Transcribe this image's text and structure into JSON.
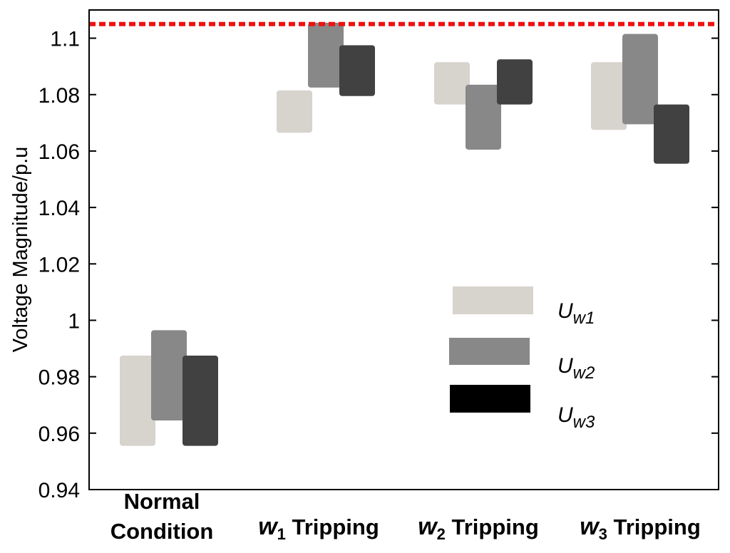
{
  "chart_data": {
    "type": "floating-bar",
    "title": "",
    "ylabel": "Voltage Magnitude/p.u",
    "ylim": [
      0.94,
      1.11
    ],
    "yticks": [
      "0.94",
      "0.96",
      "0.98",
      "1",
      "1.02",
      "1.04",
      "1.06",
      "1.08",
      "1.1"
    ],
    "categories": [
      {
        "lines": [
          {
            "text": "Normal"
          },
          {
            "text": "Condition"
          }
        ]
      },
      {
        "lines": [
          {
            "sym": "w",
            "sub": "1",
            "text": " Tripping"
          }
        ]
      },
      {
        "lines": [
          {
            "sym": "w",
            "sub": "2",
            "text": " Tripping"
          }
        ]
      },
      {
        "lines": [
          {
            "sym": "w",
            "sub": "3",
            "text": " Tripping"
          }
        ]
      }
    ],
    "series": [
      {
        "label_main": "U",
        "label_sub": "w1",
        "color": "#d7d3cd",
        "ranges": [
          [
            0.9555,
            0.9875
          ],
          [
            1.0665,
            1.0815
          ],
          [
            1.0765,
            1.0915
          ],
          [
            1.0675,
            1.0915
          ]
        ]
      },
      {
        "label_main": "U",
        "label_sub": "w2",
        "color": "#888888",
        "ranges": [
          [
            0.9645,
            0.9965
          ],
          [
            1.0825,
            1.1055
          ],
          [
            1.0605,
            1.0835
          ],
          [
            1.0695,
            1.1015
          ]
        ]
      },
      {
        "label_main": "U",
        "label_sub": "w3",
        "color": "#414141",
        "ranges": [
          [
            0.9555,
            0.9875
          ],
          [
            1.0795,
            1.0975
          ],
          [
            1.0765,
            1.0925
          ],
          [
            1.0555,
            1.0765
          ]
        ]
      }
    ],
    "reference_line": {
      "value": 1.105,
      "color": "#ee1111"
    },
    "legend_position": "lower-right",
    "legend_swatch_colors": [
      "#d7d3cd",
      "#888888",
      "#000000"
    ],
    "grid": false
  }
}
